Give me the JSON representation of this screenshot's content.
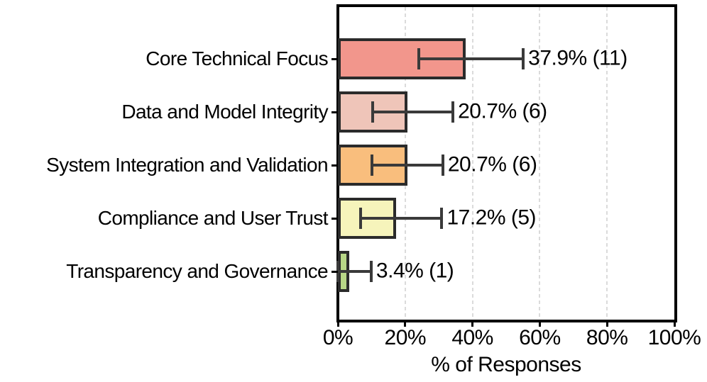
{
  "chart_data": {
    "type": "bar",
    "orientation": "horizontal",
    "xlabel": "% of Responses",
    "xlim": [
      0,
      100
    ],
    "x_tick_labels": [
      "0%",
      "20%",
      "40%",
      "60%",
      "80%",
      "100%"
    ],
    "x_tick_values": [
      0,
      20,
      40,
      60,
      80,
      100
    ],
    "gridline_values": [
      20,
      40,
      60,
      80
    ],
    "grid": "vertical-dashed",
    "legend": "none",
    "categories": [
      "Core Technical Focus",
      "Data and Model Integrity",
      "System Integration and Validation",
      "Compliance and User Trust",
      "Transparency and Governance"
    ],
    "values": [
      37.9,
      20.7,
      20.7,
      17.2,
      3.4
    ],
    "counts": [
      11,
      6,
      6,
      5,
      1
    ],
    "value_labels": [
      "37.9% (11)",
      "20.7% (6)",
      "20.7% (6)",
      "17.2% (5)",
      "3.4% (1)"
    ],
    "error_low": [
      24.0,
      10.3,
      10.1,
      6.8,
      0
    ],
    "error_high": [
      55.1,
      34.2,
      31.2,
      30.9,
      9.9
    ],
    "bar_colors": [
      "#F2968C",
      "#EFC5B9",
      "#F9BE7D",
      "#F6F4BB",
      "#B8D787"
    ],
    "bar_edge_color": "#2B2B2B",
    "error_bar_color": "#3A3A3A",
    "grid_color": "#DBDBDB",
    "axis_color": "#000000",
    "text_color": "#000000",
    "background_color": "#FFFFFF"
  }
}
